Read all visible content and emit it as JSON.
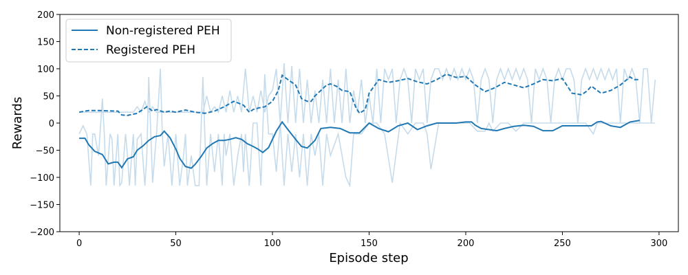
{
  "chart_data": {
    "type": "line",
    "title": "",
    "xlabel": "Episode step",
    "ylabel": "Rewards",
    "xlim": [
      -10,
      310
    ],
    "ylim": [
      -200,
      200
    ],
    "xticks": [
      0,
      50,
      100,
      150,
      200,
      250,
      300
    ],
    "yticks": [
      -200,
      -150,
      -100,
      -50,
      0,
      50,
      100,
      150,
      200
    ],
    "grid": false,
    "legend": {
      "position": "top-left",
      "entries": [
        "Non-registered PEH",
        "Registered PEH"
      ]
    },
    "colors": {
      "smoothed": "#1f77b4",
      "raw": "#c5dbeb",
      "axis": "#000000"
    },
    "series": [
      {
        "name": "Non-registered PEH",
        "style": "solid",
        "x": [
          0,
          3,
          5,
          8,
          12,
          15,
          18,
          20,
          22,
          25,
          28,
          30,
          33,
          36,
          39,
          42,
          44,
          47,
          50,
          52,
          55,
          58,
          60,
          63,
          66,
          69,
          72,
          75,
          78,
          81,
          84,
          87,
          90,
          92,
          95,
          98,
          100,
          102,
          105,
          108,
          112,
          115,
          118,
          122,
          125,
          130,
          135,
          140,
          145,
          150,
          155,
          160,
          165,
          170,
          175,
          180,
          185,
          190,
          195,
          200,
          203,
          205,
          208,
          212,
          216,
          220,
          225,
          230,
          235,
          240,
          245,
          250,
          255,
          260,
          265,
          268,
          270,
          275,
          280,
          285,
          290
        ],
        "y": [
          -28,
          -28,
          -40,
          -52,
          -58,
          -75,
          -72,
          -72,
          -82,
          -66,
          -62,
          -50,
          -42,
          -32,
          -25,
          -23,
          -15,
          -27,
          -48,
          -65,
          -80,
          -83,
          -76,
          -62,
          -46,
          -38,
          -32,
          -32,
          -30,
          -27,
          -30,
          -38,
          -43,
          -47,
          -54,
          -45,
          -30,
          -15,
          2,
          -12,
          -30,
          -43,
          -46,
          -32,
          -10,
          -8,
          -10,
          -18,
          -18,
          0,
          -10,
          -16,
          -5,
          0,
          -12,
          -5,
          0,
          0,
          0,
          2,
          2,
          -4,
          -10,
          -12,
          -14,
          -10,
          -6,
          -4,
          -6,
          -14,
          -14,
          -5,
          -5,
          -5,
          -5,
          2,
          3,
          -5,
          -8,
          2,
          5
        ]
      },
      {
        "name": "Registered PEH",
        "style": "dashed",
        "x": [
          0,
          3,
          5,
          10,
          20,
          22,
          25,
          30,
          35,
          38,
          40,
          44,
          47,
          50,
          55,
          60,
          65,
          70,
          75,
          80,
          85,
          88,
          90,
          93,
          96,
          100,
          103,
          105,
          108,
          112,
          115,
          118,
          120,
          122,
          125,
          128,
          130,
          133,
          136,
          140,
          143,
          145,
          148,
          150,
          155,
          160,
          165,
          170,
          175,
          180,
          185,
          190,
          195,
          200,
          205,
          210,
          215,
          220,
          225,
          230,
          235,
          240,
          245,
          250,
          255,
          260,
          263,
          265,
          270,
          275,
          280,
          285,
          287,
          290
        ],
        "y": [
          20,
          22,
          23,
          23,
          22,
          15,
          14,
          18,
          30,
          22,
          25,
          20,
          22,
          20,
          24,
          20,
          18,
          22,
          30,
          40,
          33,
          20,
          25,
          28,
          30,
          40,
          60,
          88,
          80,
          70,
          45,
          40,
          40,
          50,
          60,
          70,
          72,
          68,
          60,
          58,
          30,
          18,
          25,
          55,
          80,
          75,
          78,
          82,
          76,
          72,
          80,
          90,
          84,
          86,
          70,
          58,
          65,
          75,
          70,
          65,
          72,
          80,
          78,
          82,
          55,
          52,
          60,
          68,
          55,
          60,
          70,
          85,
          80,
          80
        ]
      }
    ],
    "raw_series": [
      {
        "name": "",
        "x": [
          0,
          2,
          4,
          6,
          7,
          8,
          10,
          12,
          13,
          14,
          16,
          17,
          18,
          20,
          21,
          22,
          24,
          25,
          26,
          28,
          29,
          30,
          32,
          34,
          35,
          36,
          38,
          40,
          42,
          43,
          44,
          46,
          48,
          50,
          52,
          54,
          55,
          56,
          58,
          60,
          62,
          64,
          65,
          66,
          68,
          70,
          72,
          74,
          75,
          76,
          78,
          80,
          82,
          84,
          85,
          86,
          88,
          90,
          92,
          94,
          96,
          98,
          100,
          102,
          104,
          106,
          108,
          110,
          112,
          114,
          116,
          118,
          120,
          122,
          124,
          126,
          128,
          130,
          134,
          138,
          140,
          142,
          146,
          150,
          154,
          158,
          162,
          166,
          170,
          174,
          178,
          180,
          182,
          186,
          190,
          194,
          198,
          200,
          202,
          206,
          210,
          212,
          214,
          218,
          222,
          226,
          230,
          234,
          238,
          242,
          246,
          250,
          254,
          258,
          262,
          266,
          268,
          270,
          274,
          278,
          282,
          286,
          290,
          294,
          298
        ],
        "y": [
          -20,
          -5,
          -20,
          -115,
          -20,
          -20,
          -60,
          45,
          -20,
          -115,
          -20,
          -30,
          -115,
          -20,
          -115,
          -110,
          -20,
          -60,
          -115,
          -20,
          -115,
          -30,
          -20,
          -115,
          -60,
          85,
          -110,
          -20,
          100,
          -20,
          -80,
          -20,
          -115,
          -20,
          -115,
          -60,
          -20,
          -115,
          -60,
          -115,
          -115,
          85,
          -20,
          -115,
          -20,
          -90,
          -20,
          -115,
          -20,
          -60,
          -20,
          -115,
          -60,
          -20,
          -90,
          -20,
          -115,
          0,
          0,
          -115,
          90,
          -20,
          -20,
          -90,
          0,
          -115,
          -20,
          -90,
          -20,
          -100,
          -20,
          -115,
          -20,
          -60,
          -20,
          -115,
          -20,
          -60,
          -20,
          -100,
          -115,
          -20,
          -20,
          0,
          0,
          -20,
          -110,
          0,
          -20,
          0,
          0,
          -20,
          -85,
          0,
          0,
          0,
          0,
          0,
          0,
          -15,
          -15,
          0,
          -15,
          0,
          0,
          -15,
          0,
          0,
          0,
          0,
          0,
          0,
          0,
          0,
          0,
          -20,
          0,
          0,
          0,
          0,
          0,
          0,
          0,
          0,
          0
        ]
      },
      {
        "name": "",
        "x": [
          0,
          2,
          4,
          8,
          12,
          16,
          20,
          24,
          28,
          30,
          32,
          34,
          36,
          38,
          40,
          42,
          44,
          46,
          48,
          50,
          52,
          54,
          56,
          58,
          60,
          62,
          64,
          66,
          68,
          70,
          72,
          74,
          76,
          78,
          80,
          82,
          84,
          86,
          88,
          90,
          92,
          94,
          96,
          98,
          100,
          102,
          104,
          106,
          108,
          110,
          112,
          114,
          116,
          118,
          120,
          122,
          124,
          126,
          128,
          130,
          132,
          134,
          136,
          138,
          140,
          142,
          144,
          146,
          148,
          150,
          152,
          154,
          156,
          158,
          160,
          162,
          164,
          166,
          168,
          170,
          172,
          174,
          176,
          178,
          180,
          182,
          184,
          186,
          188,
          190,
          192,
          194,
          196,
          198,
          200,
          202,
          204,
          206,
          208,
          210,
          212,
          214,
          216,
          218,
          220,
          222,
          224,
          226,
          228,
          230,
          232,
          234,
          236,
          238,
          240,
          242,
          244,
          246,
          248,
          250,
          252,
          254,
          256,
          258,
          260,
          262,
          264,
          266,
          268,
          270,
          272,
          274,
          276,
          278,
          280,
          282,
          284,
          286,
          288,
          290,
          292,
          294,
          296,
          298
        ],
        "y": [
          20,
          20,
          20,
          20,
          20,
          20,
          20,
          20,
          20,
          30,
          20,
          40,
          20,
          30,
          20,
          20,
          20,
          20,
          20,
          20,
          20,
          20,
          20,
          20,
          20,
          20,
          20,
          50,
          20,
          30,
          20,
          50,
          20,
          60,
          20,
          50,
          20,
          100,
          20,
          50,
          20,
          60,
          20,
          50,
          60,
          100,
          0,
          110,
          0,
          105,
          0,
          100,
          0,
          80,
          0,
          60,
          0,
          80,
          0,
          100,
          0,
          80,
          0,
          100,
          0,
          60,
          20,
          80,
          0,
          50,
          0,
          100,
          0,
          100,
          80,
          100,
          0,
          80,
          100,
          80,
          0,
          100,
          80,
          100,
          0,
          80,
          100,
          100,
          80,
          100,
          80,
          100,
          80,
          100,
          80,
          100,
          80,
          0,
          80,
          100,
          80,
          0,
          80,
          100,
          80,
          100,
          80,
          100,
          80,
          100,
          80,
          0,
          100,
          80,
          100,
          80,
          0,
          80,
          100,
          80,
          100,
          100,
          80,
          0,
          80,
          100,
          80,
          100,
          80,
          100,
          80,
          100,
          80,
          100,
          0,
          100,
          80,
          100,
          80,
          0,
          100,
          100,
          0,
          80
        ]
      }
    ]
  }
}
